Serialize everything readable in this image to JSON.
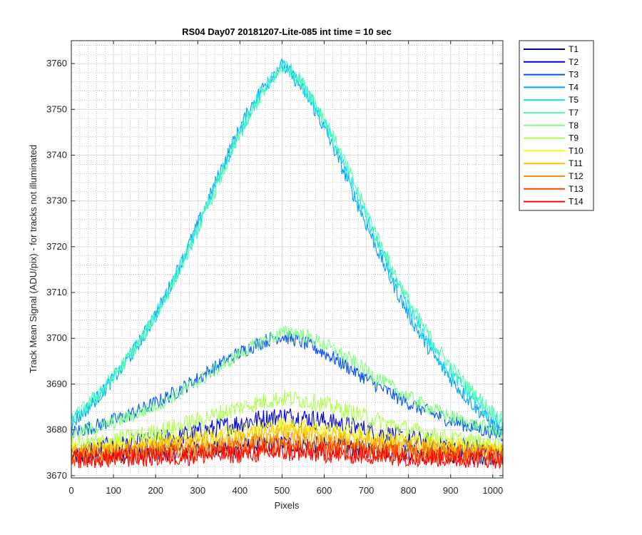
{
  "chart_data": {
    "type": "line",
    "title": "RS04 Day07 20181207-Lite-085 int time = 10 sec",
    "xlabel": "Pixels",
    "ylabel": "Track Mean Signal (ADU/pix) - for tracks not illuminated",
    "xlim": [
      0,
      1024
    ],
    "ylim": [
      3669.5,
      3765
    ],
    "xticks": [
      0,
      100,
      200,
      300,
      400,
      500,
      600,
      700,
      800,
      900,
      1000
    ],
    "yticks": [
      3670,
      3680,
      3690,
      3700,
      3710,
      3720,
      3730,
      3740,
      3750,
      3760
    ],
    "grid": true,
    "minor_grid": true,
    "legend_position": "outside-top-right",
    "series": [
      {
        "name": "T1",
        "color": "#00008f",
        "base": 3674.0,
        "peak": 3677.0,
        "noise": 1.2,
        "x": [
          0,
          1024
        ],
        "peak_x": 512
      },
      {
        "name": "T2",
        "color": "#0000e6",
        "base": 3675.0,
        "peak": 3683.0,
        "noise": 1.4,
        "x": [
          0,
          1024
        ],
        "peak_x": 512
      },
      {
        "name": "T3",
        "color": "#0050ff",
        "base": 3678.0,
        "peak": 3700.5,
        "noise": 1.0,
        "x": [
          0,
          1024
        ],
        "peak_x": 500
      },
      {
        "name": "T4",
        "color": "#00a0ff",
        "base": 3676.0,
        "peak": 3759.5,
        "noise": 1.0,
        "x": [
          0,
          1024
        ],
        "peak_x": 500
      },
      {
        "name": "T5",
        "color": "#10e0f0",
        "base": 3677.0,
        "peak": 3759.5,
        "noise": 1.0,
        "x": [
          0,
          1024
        ],
        "peak_x": 505
      },
      {
        "name": "T7",
        "color": "#50ffb0",
        "base": 3678.0,
        "peak": 3759.5,
        "noise": 1.0,
        "x": [
          0,
          1024
        ],
        "peak_x": 510
      },
      {
        "name": "T8",
        "color": "#80ff80",
        "base": 3678.0,
        "peak": 3701.5,
        "noise": 1.0,
        "x": [
          0,
          1024
        ],
        "peak_x": 520
      },
      {
        "name": "T9",
        "color": "#b0ff50",
        "base": 3676.0,
        "peak": 3687.0,
        "noise": 1.2,
        "x": [
          0,
          1024
        ],
        "peak_x": 512
      },
      {
        "name": "T10",
        "color": "#f0ff10",
        "base": 3675.5,
        "peak": 3681.0,
        "noise": 1.2,
        "x": [
          0,
          1024
        ],
        "peak_x": 512
      },
      {
        "name": "T11",
        "color": "#ffc000",
        "base": 3675.0,
        "peak": 3679.5,
        "noise": 1.2,
        "x": [
          0,
          1024
        ],
        "peak_x": 512
      },
      {
        "name": "T12",
        "color": "#ff8c00",
        "base": 3674.5,
        "peak": 3677.5,
        "noise": 1.3,
        "x": [
          0,
          1024
        ],
        "peak_x": 512
      },
      {
        "name": "T13",
        "color": "#ff4000",
        "base": 3674.0,
        "peak": 3676.0,
        "noise": 1.3,
        "x": [
          0,
          1024
        ],
        "peak_x": 512
      },
      {
        "name": "T14",
        "color": "#ff0000",
        "base": 3673.5,
        "peak": 3675.0,
        "noise": 1.3,
        "x": [
          0,
          1024
        ],
        "peak_x": 512
      }
    ]
  }
}
